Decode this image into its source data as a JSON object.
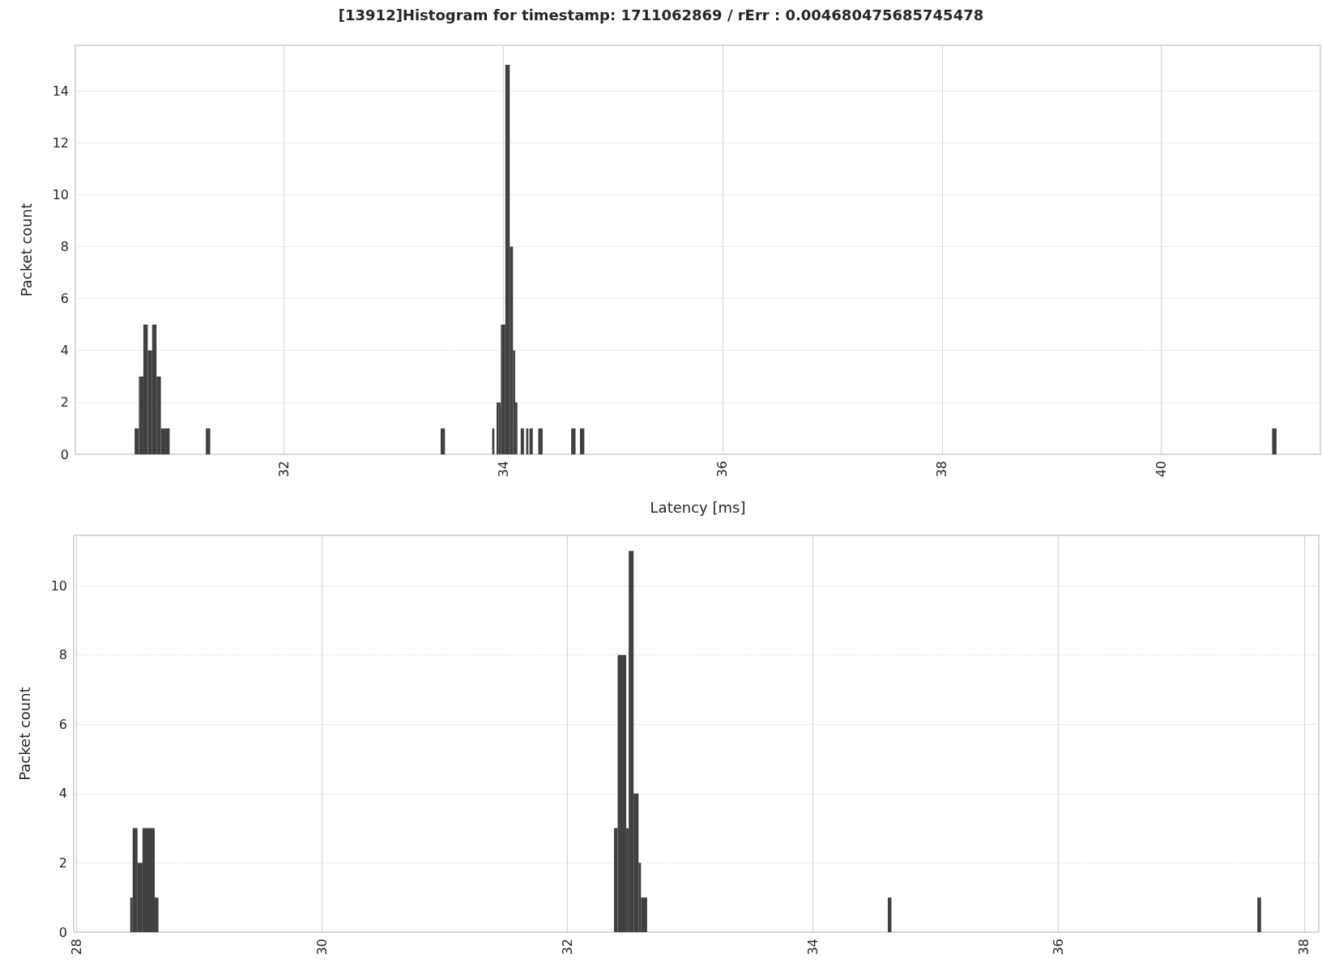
{
  "chart_data": [
    {
      "type": "histogram",
      "title": "[13912]Histogram for timestamp: 1711062869 / rErr : 0.004680475685745478",
      "xlabel": "Latency [ms]",
      "ylabel": "Packet count",
      "color": "#404040",
      "grid": true,
      "bins": [
        30.64,
        30.68,
        30.72,
        30.76,
        30.8,
        30.84,
        30.88,
        30.92,
        30.96,
        31.29,
        31.33,
        33.43,
        33.47,
        33.9,
        33.92,
        33.94,
        33.96,
        33.98,
        34.02,
        34.06,
        34.09,
        34.11,
        34.13,
        34.16,
        34.19,
        34.21,
        34.23,
        34.24,
        34.27,
        34.32,
        34.36,
        34.62,
        34.66,
        34.7,
        34.74,
        41.01,
        41.05
      ],
      "values": [
        1,
        3,
        5,
        4,
        5,
        3,
        1,
        1,
        0,
        1,
        0,
        1,
        0,
        1,
        0,
        2,
        2,
        5,
        15,
        8,
        4,
        2,
        0,
        1,
        0,
        1,
        0,
        1,
        0,
        1,
        0,
        1,
        0,
        1,
        0,
        1
      ],
      "xlim": [
        30.1,
        41.45
      ],
      "xticks": [
        32,
        34,
        36,
        38,
        40
      ],
      "ylim": [
        0,
        15.75
      ],
      "yticks": [
        0,
        2,
        4,
        6,
        8,
        10,
        12,
        14
      ]
    },
    {
      "type": "histogram",
      "ylabel": "Packet count",
      "color": "#404040",
      "grid": true,
      "bins": [
        28.44,
        28.46,
        28.5,
        28.54,
        28.64,
        28.67,
        32.38,
        32.41,
        32.48,
        32.5,
        32.54,
        32.58,
        32.6,
        32.65,
        34.61,
        34.64,
        37.62,
        37.65
      ],
      "values": [
        1,
        3,
        2,
        3,
        1,
        0,
        3,
        8,
        3,
        11,
        4,
        2,
        1,
        0,
        1,
        0,
        1
      ],
      "xlim": [
        27.98,
        38.12
      ],
      "xticks": [
        28,
        30,
        32,
        34,
        36,
        38
      ],
      "ylim": [
        0,
        11.45
      ],
      "yticks": [
        0,
        2,
        4,
        6,
        8,
        10
      ]
    }
  ]
}
